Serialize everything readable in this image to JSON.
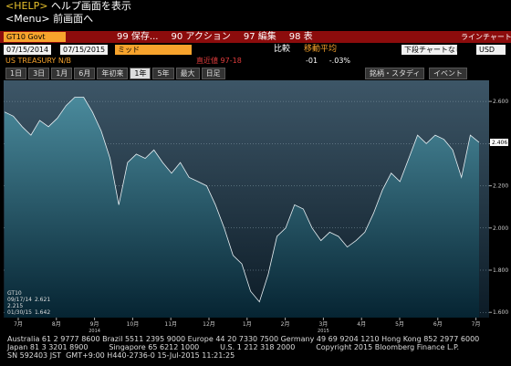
{
  "help_line": {
    "key": "<HELP>",
    "text": "ヘルプ画面を表示"
  },
  "menu_line": {
    "key": "<Menu>",
    "text": "前画面へ"
  },
  "toolbar": {
    "security": "GT10 Govt",
    "buttons": [
      "99 保存...",
      "90 アクション",
      "97 編集",
      "98 表"
    ],
    "chart_type": "ラインチャート"
  },
  "settings": {
    "start": "07/15/2014",
    "end": "07/15/2015",
    "price": "ミッド",
    "compare": "比較",
    "moving_average": "移動平均",
    "lower_chart": "下段チャートなし",
    "currency": "USD"
  },
  "quote": {
    "name": "US TREASURY N/B",
    "last_label": "直近値",
    "last": "97-18",
    "change": "-01",
    "change_pct": "-.03%"
  },
  "periods": [
    "1日",
    "3日",
    "1月",
    "6月",
    "年初来",
    "1年",
    "5年",
    "最大"
  ],
  "active_period": "1年",
  "frequency": "日足",
  "studies": "銘柄・スタディ",
  "events": "イベント",
  "chart_data": {
    "type": "area",
    "series": [
      {
        "name": "GT10",
        "color": "#e8f0f4",
        "values": [
          2.55,
          2.53,
          2.48,
          2.44,
          2.51,
          2.48,
          2.52,
          2.58,
          2.62,
          2.62,
          2.55,
          2.46,
          2.33,
          2.11,
          2.31,
          2.35,
          2.33,
          2.37,
          2.31,
          2.26,
          2.31,
          2.24,
          2.22,
          2.2,
          2.11,
          2.0,
          1.87,
          1.83,
          1.7,
          1.65,
          1.78,
          1.96,
          2.0,
          2.11,
          2.09,
          2.0,
          1.94,
          1.98,
          1.96,
          1.91,
          1.94,
          1.98,
          2.07,
          2.18,
          2.26,
          2.22,
          2.33,
          2.44,
          2.4,
          2.44,
          2.42,
          2.37,
          2.24,
          2.44,
          2.406
        ]
      }
    ],
    "ylim": [
      1.575,
      2.7
    ],
    "yticks": [
      {
        "value": 1.6,
        "label": "1.600"
      },
      {
        "value": 1.8,
        "label": "1.800"
      },
      {
        "value": 2.0,
        "label": "2.000"
      },
      {
        "value": 2.2,
        "label": "2.200"
      },
      {
        "value": 2.4,
        "label": "2.400"
      },
      {
        "value": 2.6,
        "label": "2.600"
      }
    ],
    "x_labels": [
      "7月",
      "8月",
      "9月",
      "10月",
      "11月",
      "12月",
      "1月",
      "2月",
      "3月",
      "4月",
      "5月",
      "6月",
      "7月"
    ],
    "years": [
      "2014",
      "2015"
    ],
    "grid": true,
    "legend_stats": {
      "high_date": "09/17/14",
      "high": 2.621,
      "mean": 2.215,
      "low_date": "01/30/15",
      "low": 1.642
    }
  },
  "footer": [
    "Australia 61 2 9777 8600 Brazil 5511 2395 9000 Europe 44 20 7330 7500 Germany 49 69 9204 1210 Hong Kong 852 2977 6000",
    "Japan 81 3 3201 8900         Singapore 65 6212 1000         U.S. 1 212 318 2000         Copyright 2015 Bloomberg Finance L.P.",
    "SN 592403 JST  GMT+9:00 H440-2736-0 15-Jul-2015 11:21:25"
  ]
}
